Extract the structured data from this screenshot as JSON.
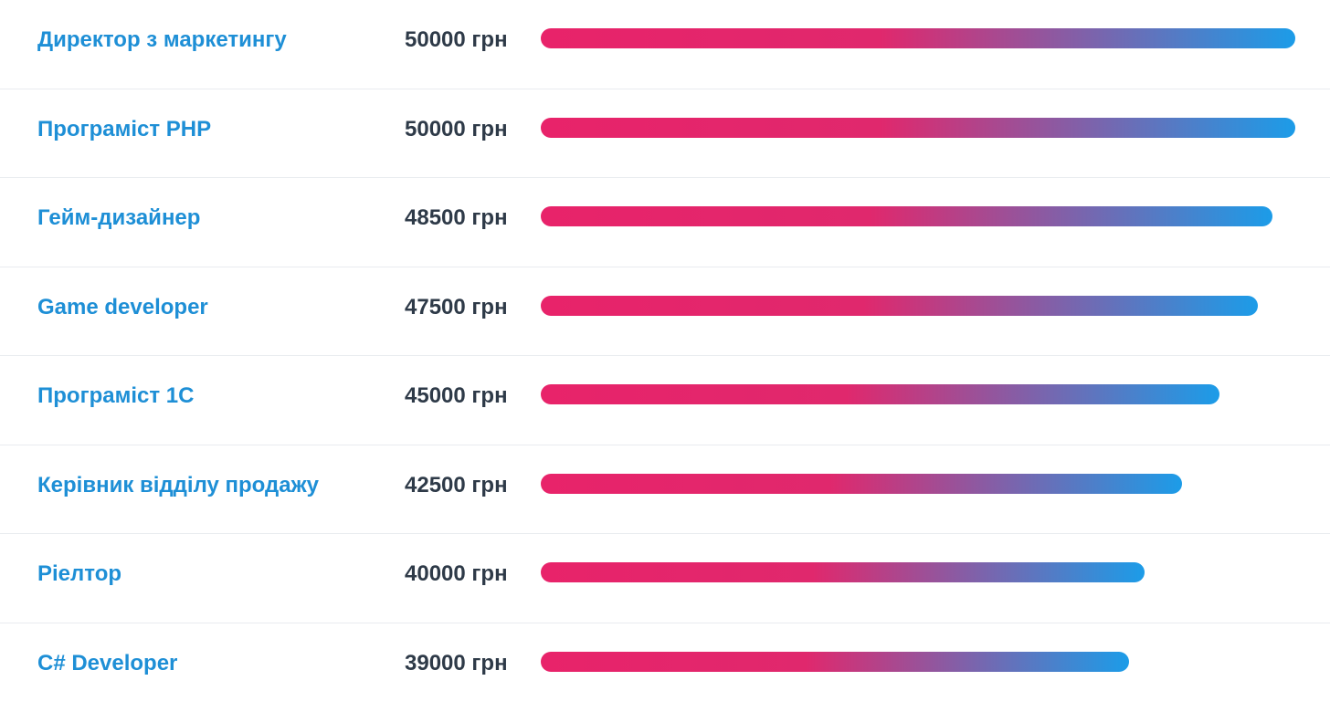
{
  "salary_list": {
    "max_value": 50000,
    "gradient": {
      "start": "#e8236a",
      "mid": "#e0286d",
      "end": "#1c9ce8"
    },
    "items": [
      {
        "title": "Директор з маркетингу",
        "salary": "50000 грн",
        "value": 50000
      },
      {
        "title": "Програміст PHP",
        "salary": "50000 грн",
        "value": 50000
      },
      {
        "title": "Гейм-дизайнер",
        "salary": "48500 грн",
        "value": 48500
      },
      {
        "title": "Game developer",
        "salary": "47500 грн",
        "value": 47500
      },
      {
        "title": "Програміст 1С",
        "salary": "45000 грн",
        "value": 45000
      },
      {
        "title": "Керівник відділу продажу",
        "salary": "42500 грн",
        "value": 42500
      },
      {
        "title": "Ріелтор",
        "salary": "40000 грн",
        "value": 40000
      },
      {
        "title": "C# Developer",
        "salary": "39000 грн",
        "value": 39000
      }
    ]
  }
}
